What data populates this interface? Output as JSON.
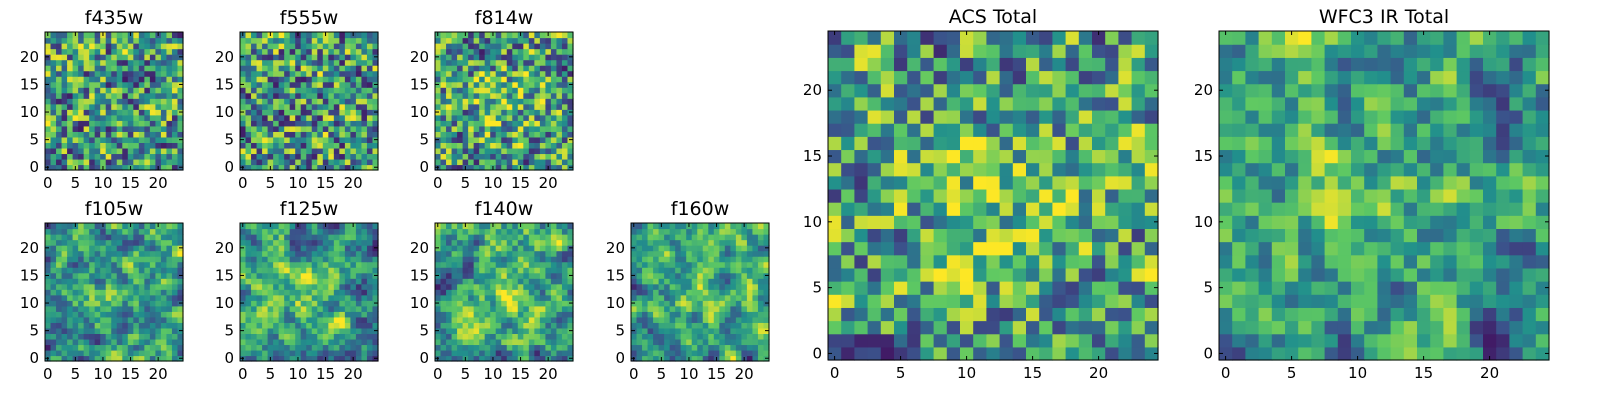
{
  "colormap": [
    "#440154",
    "#3b528b",
    "#21908c",
    "#5dc863",
    "#fde725"
  ],
  "chart_data": [
    {
      "type": "heatmap",
      "title": "f435w",
      "grid_size": 25,
      "seed": 11,
      "smooth": 0.15,
      "x_ticks": [
        "0",
        "5",
        "10",
        "15",
        "20"
      ],
      "y_ticks": [
        "0",
        "5",
        "10",
        "15",
        "20"
      ],
      "grid": false
    },
    {
      "type": "heatmap",
      "title": "f555w",
      "grid_size": 25,
      "seed": 23,
      "smooth": 0.2,
      "x_ticks": [
        "0",
        "5",
        "10",
        "15",
        "20"
      ],
      "y_ticks": [
        "0",
        "5",
        "10",
        "15",
        "20"
      ],
      "grid": false
    },
    {
      "type": "heatmap",
      "title": "f814w",
      "grid_size": 25,
      "seed": 37,
      "smooth": 0.25,
      "x_ticks": [
        "0",
        "5",
        "10",
        "15",
        "20"
      ],
      "y_ticks": [
        "0",
        "5",
        "10",
        "15",
        "20"
      ],
      "grid": false
    },
    {
      "type": "heatmap",
      "title": "f105w",
      "grid_size": 25,
      "seed": 41,
      "smooth": 0.5,
      "x_ticks": [
        "0",
        "5",
        "10",
        "15",
        "20"
      ],
      "y_ticks": [
        "0",
        "5",
        "10",
        "15",
        "20"
      ],
      "grid": false
    },
    {
      "type": "heatmap",
      "title": "f125w",
      "grid_size": 25,
      "seed": 53,
      "smooth": 0.5,
      "x_ticks": [
        "0",
        "5",
        "10",
        "15",
        "20"
      ],
      "y_ticks": [
        "0",
        "5",
        "10",
        "15",
        "20"
      ],
      "grid": false
    },
    {
      "type": "heatmap",
      "title": "f140w",
      "grid_size": 25,
      "seed": 67,
      "smooth": 0.55,
      "x_ticks": [
        "0",
        "5",
        "10",
        "15",
        "20"
      ],
      "y_ticks": [
        "0",
        "5",
        "10",
        "15",
        "20"
      ],
      "grid": false
    },
    {
      "type": "heatmap",
      "title": "f160w",
      "grid_size": 25,
      "seed": 79,
      "smooth": 0.55,
      "x_ticks": [
        "0",
        "5",
        "10",
        "15",
        "20"
      ],
      "y_ticks": [
        "0",
        "5",
        "10",
        "15",
        "20"
      ],
      "grid": false
    },
    {
      "type": "heatmap",
      "title": "ACS Total",
      "grid_size": 25,
      "seed": 97,
      "smooth": 0.3,
      "x_ticks": [
        "0",
        "5",
        "10",
        "15",
        "20"
      ],
      "y_ticks": [
        "0",
        "5",
        "10",
        "15",
        "20"
      ],
      "grid": false
    },
    {
      "type": "heatmap",
      "title": "WFC3 IR Total",
      "grid_size": 25,
      "seed": 131,
      "smooth": 0.45,
      "x_ticks": [
        "0",
        "5",
        "10",
        "15",
        "20"
      ],
      "y_ticks": [
        "0",
        "5",
        "10",
        "15",
        "20"
      ],
      "grid": false
    }
  ]
}
